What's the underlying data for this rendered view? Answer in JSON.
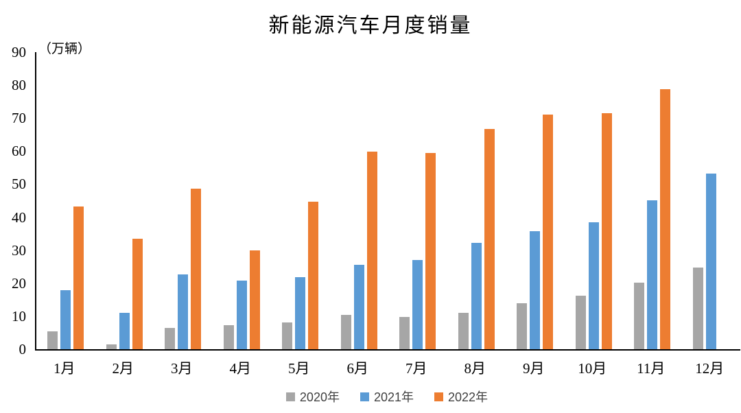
{
  "title": "新能源汽车月度销量",
  "y_axis_unit": "（万辆）",
  "chart_data": {
    "type": "bar",
    "title": "新能源汽车月度销量",
    "unit": "万辆",
    "categories": [
      "1月",
      "2月",
      "3月",
      "4月",
      "5月",
      "6月",
      "7月",
      "8月",
      "9月",
      "10月",
      "11月",
      "12月"
    ],
    "series": [
      {
        "name": "2020年",
        "color": "#A6A6A6",
        "values": [
          5.4,
          1.4,
          6.5,
          7.3,
          8.2,
          10.4,
          9.7,
          11.0,
          14.0,
          16.3,
          20.2,
          24.7
        ]
      },
      {
        "name": "2021年",
        "color": "#5B9BD5",
        "values": [
          17.9,
          11.0,
          22.6,
          20.7,
          21.8,
          25.6,
          27.1,
          32.2,
          35.8,
          38.4,
          45.2,
          53.3
        ]
      },
      {
        "name": "2022年",
        "color": "#ED7D31",
        "values": [
          43.3,
          33.5,
          48.6,
          29.9,
          44.8,
          59.8,
          59.5,
          66.8,
          71.0,
          71.6,
          78.8,
          null
        ]
      }
    ],
    "ylim": [
      0,
      90
    ],
    "y_tick_step": 10,
    "xlabel": "",
    "ylabel": "（万辆）",
    "grid": false,
    "legend_position": "bottom",
    "axis_color": "#000000",
    "text_color": "#000000",
    "legend_text_color": "#404040"
  }
}
